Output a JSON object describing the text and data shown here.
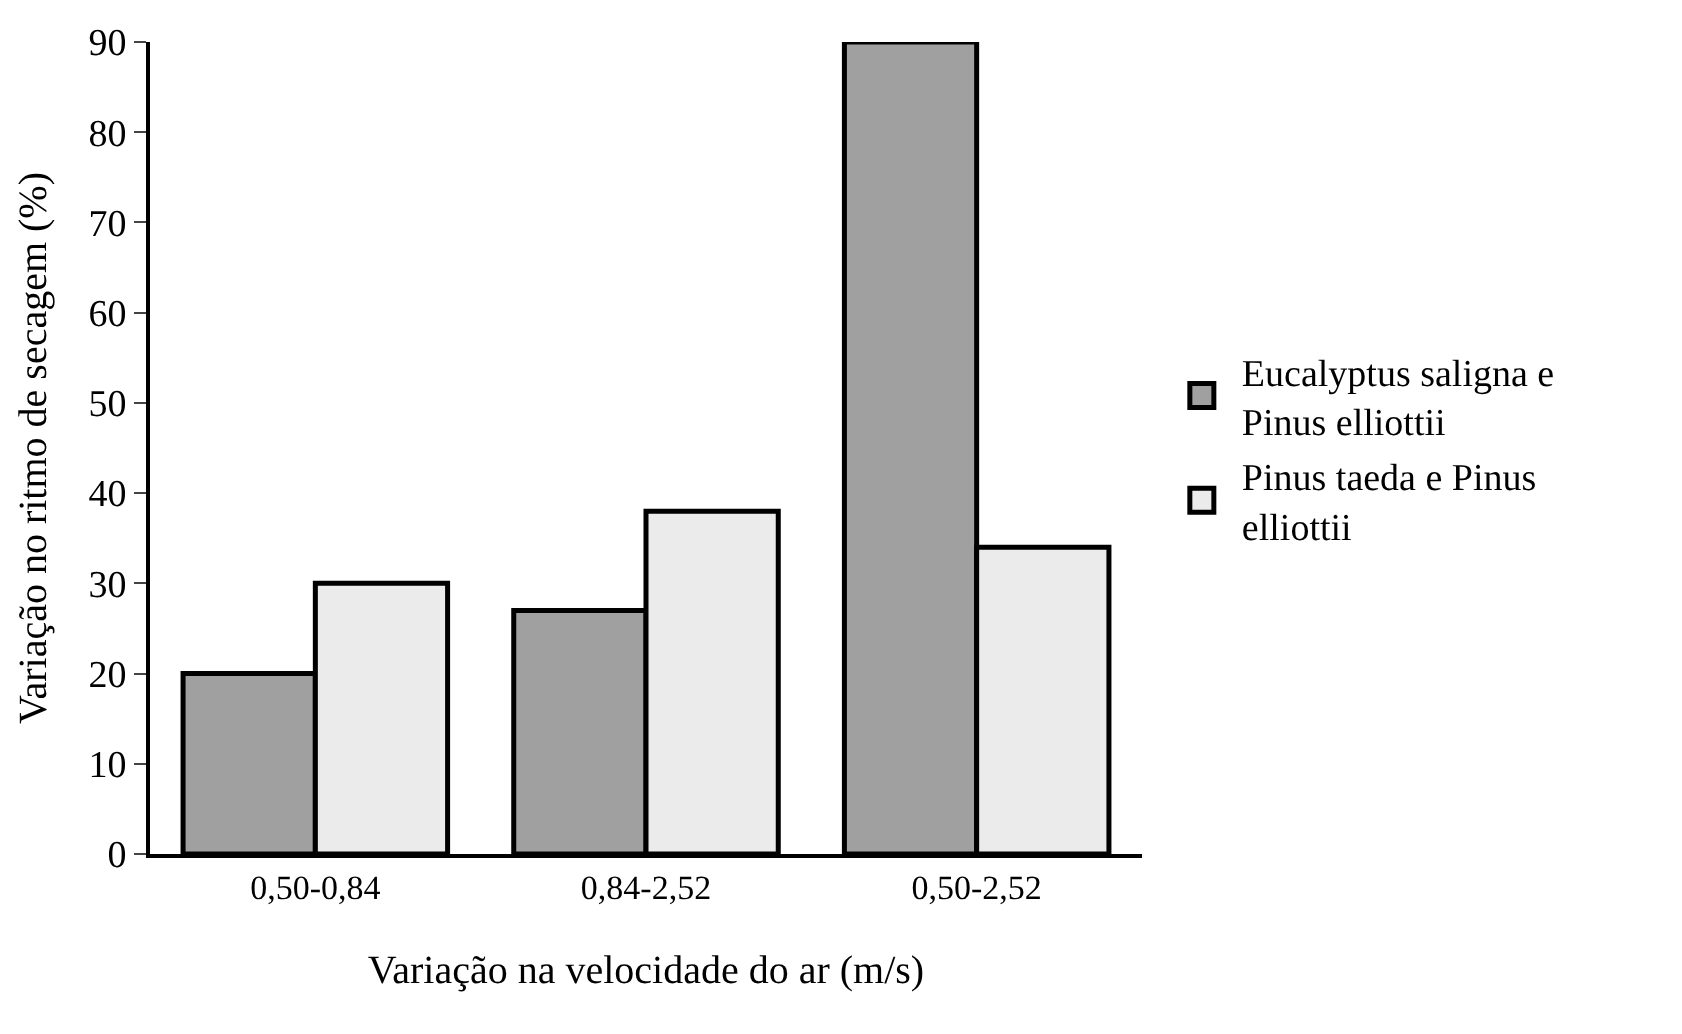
{
  "chart_data": {
    "type": "bar",
    "xlabel": "Variação na velocidade do ar (m/s)",
    "ylabel": "Variação no ritmo de secagem (%)",
    "categories": [
      "0,50-0,84",
      "0,84-2,52",
      "0,50-2,52"
    ],
    "series": [
      {
        "name": "Eucalyptus saligna e Pinus elliottii",
        "color": "#a0a0a0",
        "values": [
          20,
          27,
          90
        ]
      },
      {
        "name": "Pinus taeda e Pinus elliottii",
        "color": "#ebebeb",
        "values": [
          30,
          38,
          34
        ]
      }
    ],
    "ylim": [
      0,
      90
    ],
    "yticks": [
      0,
      10,
      20,
      30,
      40,
      50,
      60,
      70,
      80,
      90
    ],
    "grid": false,
    "legend": "right"
  }
}
